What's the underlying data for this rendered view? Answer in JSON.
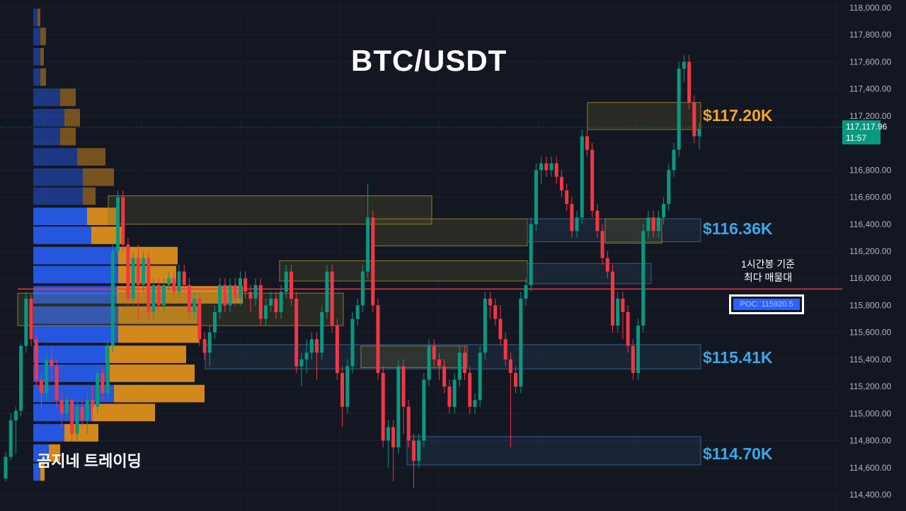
{
  "title": "BTC/USDT",
  "watermark": "곰지네 트레이딩",
  "poc": {
    "note_line1": "1시간봉 기준",
    "note_line2": "최다 매물대",
    "label": "POC: 115920.5",
    "value": 115920.5
  },
  "current_price": {
    "price": "117,117.96",
    "time": "11:57",
    "value": 117117.96,
    "color": "#089981"
  },
  "levels": [
    {
      "label": "$117.20K",
      "value": 117200,
      "color": "#f5a623"
    },
    {
      "label": "$116.36K",
      "value": 116360,
      "color": "#3ba7e8"
    },
    {
      "label": "$115.41K",
      "value": 115410,
      "color": "#3ba7e8"
    },
    {
      "label": "$114.70K",
      "value": 114700,
      "color": "#3ba7e8"
    }
  ],
  "colors": {
    "background": "#131722",
    "up": "#089981",
    "down": "#f23645",
    "volume_buy": "#2962ff",
    "volume_sell": "#f59c1a",
    "poc_line": "#f23645",
    "axis_text": "#b2b5be"
  },
  "chart_data": {
    "type": "candlestick",
    "symbol": "BTC/USDT",
    "y_axis": {
      "ticks": [
        "118,000.00",
        "117,800.00",
        "117,600.00",
        "117,400.00",
        "117,200.00",
        "116,800.00",
        "116,600.00",
        "116,400.00",
        "116,200.00",
        "116,000.00",
        "115,800.00",
        "115,600.00",
        "115,400.00",
        "115,200.00",
        "115,000.00",
        "114,800.00",
        "114,600.00",
        "114,400.00"
      ],
      "range": [
        114330,
        118060
      ]
    },
    "volume_profile": {
      "bins": [
        {
          "price": 117920,
          "buy": 6,
          "sell": 4
        },
        {
          "price": 117780,
          "buy": 10,
          "sell": 8
        },
        {
          "price": 117630,
          "buy": 10,
          "sell": 5
        },
        {
          "price": 117480,
          "buy": 10,
          "sell": 8
        },
        {
          "price": 117330,
          "buy": 38,
          "sell": 22
        },
        {
          "price": 117180,
          "buy": 44,
          "sell": 22
        },
        {
          "price": 117040,
          "buy": 38,
          "sell": 22
        },
        {
          "price": 116890,
          "buy": 62,
          "sell": 40
        },
        {
          "price": 116740,
          "buy": 70,
          "sell": 44
        },
        {
          "price": 116600,
          "buy": 70,
          "sell": 18
        },
        {
          "price": 116450,
          "buy": 76,
          "sell": 44
        },
        {
          "price": 116310,
          "buy": 82,
          "sell": 46
        },
        {
          "price": 116160,
          "buy": 120,
          "sell": 84
        },
        {
          "price": 116020,
          "buy": 120,
          "sell": 82
        },
        {
          "price": 115870,
          "buy": 118,
          "sell": 178
        },
        {
          "price": 115720,
          "buy": 120,
          "sell": 112
        },
        {
          "price": 115580,
          "buy": 120,
          "sell": 114
        },
        {
          "price": 115430,
          "buy": 102,
          "sell": 114
        },
        {
          "price": 115290,
          "buy": 108,
          "sell": 120
        },
        {
          "price": 115140,
          "buy": 114,
          "sell": 128
        },
        {
          "price": 115000,
          "buy": 82,
          "sell": 90
        },
        {
          "price": 114850,
          "buy": 44,
          "sell": 48
        },
        {
          "price": 114700,
          "buy": 22,
          "sell": 16
        },
        {
          "price": 114560,
          "buy": 10,
          "sell": 6
        }
      ]
    },
    "zones": [
      {
        "from": 116400,
        "to": 116610,
        "start": 153,
        "end": 610,
        "color": "#6b6228"
      },
      {
        "from": 116240,
        "to": 116440,
        "start": 525,
        "end": 745,
        "color": "#6b6228"
      },
      {
        "from": 115980,
        "to": 116130,
        "start": 395,
        "end": 745,
        "color": "#6b6228"
      },
      {
        "from": 115650,
        "to": 115890,
        "start": 25,
        "end": 485,
        "color": "#6b6228"
      },
      {
        "from": 115330,
        "to": 115510,
        "start": 290,
        "end": 990,
        "color": "#2d4a6a"
      },
      {
        "from": 116270,
        "to": 116440,
        "start": 745,
        "end": 990,
        "color": "#2d4a6a"
      },
      {
        "from": 115960,
        "to": 116110,
        "start": 745,
        "end": 920,
        "color": "#2d4a6a"
      },
      {
        "from": 114620,
        "to": 114830,
        "start": 575,
        "end": 990,
        "color": "#2d4a6a"
      },
      {
        "from": 117100,
        "to": 117300,
        "start": 830,
        "end": 990,
        "color": "#6b6228"
      },
      {
        "from": 116260,
        "to": 116440,
        "start": 855,
        "end": 935,
        "color": "#6b6228"
      },
      {
        "from": 115500,
        "to": 115340,
        "start": 510,
        "end": 660,
        "color": "#6b6228"
      }
    ],
    "candles": [
      [
        114520,
        114680,
        114500,
        114720
      ],
      [
        114680,
        114950,
        114650,
        115000
      ],
      [
        114950,
        115020,
        114700,
        115050
      ],
      [
        115020,
        115500,
        114980,
        115520
      ],
      [
        115500,
        115850,
        115450,
        115900
      ],
      [
        115850,
        115550,
        115500,
        115880
      ],
      [
        115550,
        115250,
        115200,
        115580
      ],
      [
        115250,
        115150,
        115050,
        115300
      ],
      [
        115150,
        115400,
        115100,
        115450
      ],
      [
        115400,
        115350,
        115250,
        115500
      ],
      [
        115350,
        115100,
        115050,
        115400
      ],
      [
        115100,
        115000,
        114900,
        115150
      ],
      [
        115000,
        115100,
        114950,
        115150
      ],
      [
        115100,
        114850,
        114800,
        115120
      ],
      [
        114850,
        115050,
        114800,
        115100
      ],
      [
        115050,
        114950,
        114900,
        115100
      ],
      [
        114950,
        115100,
        114850,
        115150
      ],
      [
        115100,
        115050,
        114950,
        115200
      ],
      [
        115050,
        115300,
        115000,
        115350
      ],
      [
        115300,
        115150,
        115100,
        115350
      ],
      [
        115150,
        115500,
        115100,
        115550
      ],
      [
        115500,
        116200,
        115450,
        116250
      ],
      [
        116200,
        116600,
        116150,
        116650
      ],
      [
        116600,
        116250,
        116200,
        116650
      ],
      [
        116250,
        115850,
        115800,
        116300
      ],
      [
        115850,
        116150,
        115800,
        116200
      ],
      [
        116150,
        115950,
        115700,
        116250
      ],
      [
        115950,
        116150,
        115900,
        116200
      ],
      [
        116150,
        115750,
        115700,
        116200
      ],
      [
        115750,
        115950,
        115700,
        116000
      ],
      [
        115950,
        115800,
        115750,
        116000
      ],
      [
        115800,
        115950,
        115750,
        116000
      ],
      [
        115950,
        116000,
        115900,
        116050
      ],
      [
        116000,
        115900,
        115850,
        116050
      ],
      [
        115900,
        116050,
        115850,
        116100
      ],
      [
        116050,
        115950,
        115900,
        116100
      ],
      [
        115950,
        115750,
        115700,
        116000
      ],
      [
        115750,
        115850,
        115700,
        115900
      ],
      [
        115850,
        115550,
        115500,
        115900
      ],
      [
        115550,
        115450,
        115400,
        115600
      ],
      [
        115450,
        115600,
        115350,
        115650
      ],
      [
        115600,
        115750,
        115550,
        115800
      ],
      [
        115750,
        115950,
        115700,
        116000
      ],
      [
        115950,
        115800,
        115750,
        116000
      ],
      [
        115800,
        115950,
        115750,
        116000
      ],
      [
        115950,
        115850,
        115800,
        116000
      ],
      [
        115850,
        116000,
        115800,
        116050
      ],
      [
        116000,
        115900,
        115850,
        116050
      ],
      [
        115900,
        115850,
        115750,
        115950
      ],
      [
        115850,
        115950,
        115800,
        116000
      ],
      [
        115950,
        115700,
        115650,
        116000
      ],
      [
        115700,
        115800,
        115650,
        115850
      ],
      [
        115800,
        115850,
        115750,
        115900
      ],
      [
        115850,
        115750,
        115700,
        115900
      ],
      [
        115750,
        115900,
        115700,
        115950
      ],
      [
        115900,
        116050,
        115850,
        116100
      ],
      [
        116050,
        115850,
        115800,
        116100
      ],
      [
        115850,
        115350,
        115300,
        115900
      ],
      [
        115350,
        115400,
        115200,
        115450
      ],
      [
        115400,
        115450,
        115300,
        115550
      ],
      [
        115450,
        115550,
        115400,
        115600
      ],
      [
        115550,
        115450,
        115250,
        115600
      ],
      [
        115450,
        115750,
        115400,
        115800
      ],
      [
        115750,
        116050,
        115700,
        116100
      ],
      [
        116050,
        115650,
        115600,
        116100
      ],
      [
        115650,
        115300,
        115250,
        115700
      ],
      [
        115300,
        115050,
        114900,
        115350
      ],
      [
        115050,
        115350,
        115000,
        115400
      ],
      [
        115350,
        115700,
        115300,
        115750
      ],
      [
        115700,
        115800,
        115650,
        115850
      ],
      [
        115800,
        116050,
        115750,
        116100
      ],
      [
        116050,
        116450,
        116000,
        116700
      ],
      [
        116450,
        115800,
        115750,
        116500
      ],
      [
        115800,
        115300,
        115250,
        115850
      ],
      [
        115300,
        114800,
        114750,
        115350
      ],
      [
        114800,
        114900,
        114600,
        114950
      ],
      [
        114900,
        114750,
        114500,
        114950
      ],
      [
        114750,
        115350,
        114700,
        115400
      ],
      [
        115350,
        115050,
        114850,
        115400
      ],
      [
        115050,
        114800,
        114750,
        115100
      ],
      [
        114800,
        114650,
        114450,
        114850
      ],
      [
        114650,
        114800,
        114600,
        114850
      ],
      [
        114800,
        115250,
        114750,
        115300
      ],
      [
        115250,
        115500,
        115200,
        115550
      ],
      [
        115500,
        115400,
        115350,
        115550
      ],
      [
        115400,
        115350,
        115250,
        115450
      ],
      [
        115350,
        115200,
        115150,
        115400
      ],
      [
        115200,
        115050,
        115000,
        115250
      ],
      [
        115050,
        115250,
        115000,
        115300
      ],
      [
        115250,
        115450,
        115200,
        115500
      ],
      [
        115450,
        115300,
        115250,
        115500
      ],
      [
        115300,
        115050,
        115000,
        115350
      ],
      [
        115050,
        115100,
        115000,
        115150
      ],
      [
        115100,
        115450,
        115050,
        115500
      ],
      [
        115450,
        115850,
        115400,
        115900
      ],
      [
        115850,
        115800,
        115700,
        115900
      ],
      [
        115800,
        115700,
        115650,
        115850
      ],
      [
        115700,
        115550,
        115500,
        115800
      ],
      [
        115550,
        115400,
        115350,
        115600
      ],
      [
        115400,
        115300,
        114750,
        115450
      ],
      [
        115300,
        115200,
        115150,
        115350
      ],
      [
        115200,
        115850,
        115150,
        115900
      ],
      [
        115850,
        115950,
        115800,
        116000
      ],
      [
        115950,
        116400,
        115900,
        116450
      ],
      [
        116400,
        116800,
        116350,
        116850
      ],
      [
        116800,
        116850,
        116700,
        116900
      ],
      [
        116850,
        116800,
        116750,
        116900
      ],
      [
        116800,
        116850,
        116750,
        116900
      ],
      [
        116850,
        116750,
        116700,
        116900
      ],
      [
        116750,
        116650,
        116600,
        116800
      ],
      [
        116650,
        116550,
        116500,
        116700
      ],
      [
        116550,
        116350,
        116300,
        116600
      ],
      [
        116350,
        116450,
        116300,
        116500
      ],
      [
        116450,
        117050,
        116400,
        117100
      ],
      [
        117050,
        116950,
        116900,
        117100
      ],
      [
        116950,
        116500,
        116450,
        117000
      ],
      [
        116500,
        116350,
        116300,
        116550
      ],
      [
        116350,
        116150,
        116100,
        116400
      ],
      [
        116150,
        116050,
        116000,
        116200
      ],
      [
        116050,
        115650,
        115600,
        116100
      ],
      [
        115650,
        115850,
        115600,
        115900
      ],
      [
        115850,
        115750,
        115550,
        115900
      ],
      [
        115750,
        115500,
        115450,
        115800
      ],
      [
        115500,
        115300,
        115250,
        115550
      ],
      [
        115300,
        115650,
        115250,
        115700
      ],
      [
        115650,
        116350,
        115600,
        116400
      ],
      [
        116350,
        116450,
        116300,
        116500
      ],
      [
        116450,
        116350,
        116300,
        116500
      ],
      [
        116350,
        116450,
        116300,
        116500
      ],
      [
        116450,
        116550,
        116400,
        116600
      ],
      [
        116550,
        116800,
        116500,
        116850
      ],
      [
        116800,
        116950,
        116750,
        117000
      ],
      [
        116950,
        117550,
        116900,
        117600
      ],
      [
        117550,
        117600,
        117450,
        117650
      ],
      [
        117600,
        117300,
        117250,
        117650
      ],
      [
        117300,
        117050,
        117000,
        117350
      ],
      [
        117050,
        117100,
        116950,
        117150
      ]
    ]
  }
}
